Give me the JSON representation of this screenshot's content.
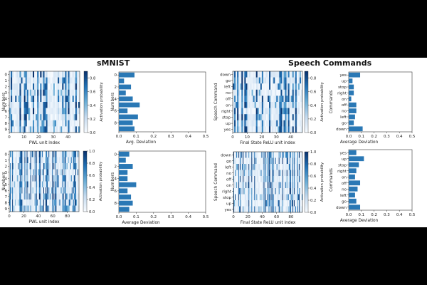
{
  "titles": {
    "left": "sMNIST",
    "right": "Speech Commands"
  },
  "colorbar": {
    "ticks": [
      "0.0",
      "0.2",
      "0.4",
      "0.6",
      "0.8"
    ],
    "ticks_b": [
      "0.0",
      "0.2",
      "0.4",
      "0.6",
      "0.8",
      "1.0"
    ],
    "label": "Activation probability"
  },
  "chart_data": [
    {
      "id": "smnist_pwl_heatmap",
      "type": "heatmap",
      "ylabel": "Numbers",
      "xlabel": "PWL unit index",
      "y_categories": [
        "0",
        "1",
        "2",
        "3",
        "4",
        "5",
        "6",
        "7",
        "8",
        "9"
      ],
      "x_ticks": [
        "0",
        "10",
        "20",
        "30",
        "40"
      ],
      "x_range": [
        0,
        48
      ],
      "colorbar_label": "Activation probability",
      "vmin": 0.0,
      "vmax": 0.9,
      "cmap": "Blues"
    },
    {
      "id": "smnist_pwl_deviation",
      "type": "bar",
      "orientation": "horizontal",
      "categories": [
        "0",
        "1",
        "2",
        "3",
        "4",
        "5",
        "6",
        "7",
        "8",
        "9"
      ],
      "values": [
        0.09,
        0.03,
        0.07,
        0.04,
        0.08,
        0.12,
        0.05,
        0.11,
        0.08,
        0.09
      ],
      "ylabel": "Numbers",
      "xlabel": "Avg. Deviation",
      "ytick_labels": [
        "0",
        "2",
        "4",
        "6",
        "8"
      ],
      "x_ticks": [
        "0.0",
        "0.1",
        "0.2",
        "0.3",
        "0.4",
        "0.5"
      ],
      "xlim": [
        0,
        0.5
      ]
    },
    {
      "id": "speech_relu_heatmap",
      "type": "heatmap",
      "ylabel": "Speech Command",
      "xlabel": "Final State ReLU unit index",
      "y_categories": [
        "down",
        "go",
        "left",
        "no",
        "off",
        "on",
        "right",
        "stop",
        "up",
        "yes"
      ],
      "x_ticks": [
        "0",
        "10",
        "20",
        "30",
        "40"
      ],
      "x_range": [
        0,
        48
      ],
      "colorbar_label": "Activation probability",
      "vmin": 0.0,
      "vmax": 0.9,
      "cmap": "Blues"
    },
    {
      "id": "speech_relu_deviation",
      "type": "bar",
      "orientation": "horizontal",
      "categories": [
        "yes",
        "up",
        "stop",
        "right",
        "on",
        "off",
        "no",
        "left",
        "go",
        "down"
      ],
      "values": [
        0.09,
        0.03,
        0.04,
        0.04,
        0.02,
        0.06,
        0.06,
        0.05,
        0.04,
        0.11
      ],
      "ylabel": "Commands",
      "xlabel": "Average Deviation",
      "x_ticks": [
        "0.0",
        "0.1",
        "0.2",
        "0.3",
        "0.4",
        "0.5"
      ],
      "xlim": [
        0,
        0.5
      ]
    },
    {
      "id": "smnist_pwl_heatmap_b",
      "type": "heatmap",
      "ylabel": "Numbers",
      "xlabel": "PWL unit index",
      "y_categories": [
        "0",
        "1",
        "2",
        "3",
        "4",
        "5",
        "6",
        "7",
        "8",
        "9"
      ],
      "x_ticks": [
        "0",
        "20",
        "40",
        "60",
        "80"
      ],
      "x_range": [
        0,
        96
      ],
      "colorbar_label": "Activation probability",
      "vmin": 0.0,
      "vmax": 1.0,
      "cmap": "Blues"
    },
    {
      "id": "smnist_pwl_deviation_b",
      "type": "bar",
      "orientation": "horizontal",
      "categories": [
        "0",
        "1",
        "2",
        "3",
        "4",
        "5",
        "6",
        "7",
        "8",
        "9"
      ],
      "values": [
        0.06,
        0.04,
        0.08,
        0.05,
        0.05,
        0.1,
        0.05,
        0.07,
        0.08,
        0.06
      ],
      "ylabel": "Numbers",
      "xlabel": "Average Deviation",
      "ytick_labels": [
        "0",
        "2",
        "4",
        "6",
        "8"
      ],
      "x_ticks": [
        "0.0",
        "0.1",
        "0.2",
        "0.3",
        "0.4",
        "0.5"
      ],
      "xlim": [
        0,
        0.5
      ]
    },
    {
      "id": "speech_relu_heatmap_b",
      "type": "heatmap",
      "ylabel": "Speech Command",
      "xlabel": "Final State ReLU unit index",
      "y_categories": [
        "down",
        "go",
        "left",
        "no",
        "off",
        "on",
        "right",
        "stop",
        "up",
        "yes"
      ],
      "x_ticks": [
        "0",
        "20",
        "40",
        "60",
        "80"
      ],
      "x_range": [
        0,
        96
      ],
      "colorbar_label": "Activation probability",
      "vmin": 0.0,
      "vmax": 1.0,
      "cmap": "Blues"
    },
    {
      "id": "speech_relu_deviation_b",
      "type": "bar",
      "orientation": "horizontal",
      "categories": [
        "yes",
        "up",
        "stop",
        "right",
        "on",
        "off",
        "no",
        "left",
        "go",
        "down"
      ],
      "values": [
        0.06,
        0.12,
        0.08,
        0.06,
        0.05,
        0.09,
        0.07,
        0.05,
        0.06,
        0.09
      ],
      "ylabel": "Commands",
      "xlabel": "Average Deviation",
      "x_ticks": [
        "0.0",
        "0.1",
        "0.2",
        "0.3",
        "0.4",
        "0.5"
      ],
      "xlim": [
        0,
        0.5
      ]
    }
  ]
}
